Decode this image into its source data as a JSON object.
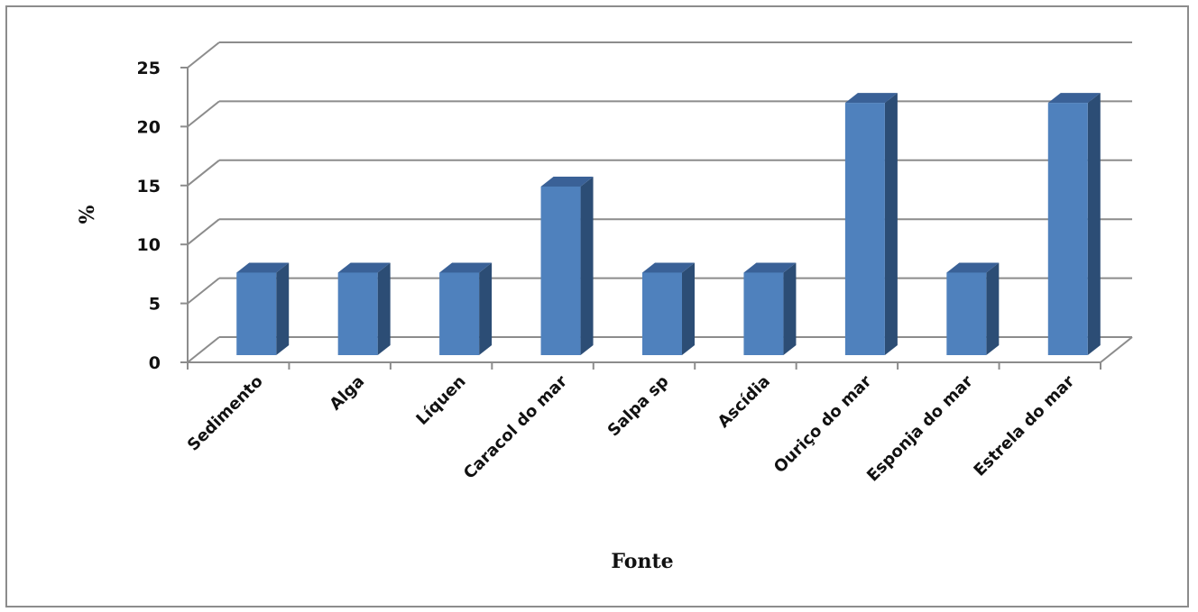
{
  "chart_data": {
    "type": "bar",
    "style": "3d-column",
    "title": "",
    "xlabel": "Fonte",
    "ylabel": "%",
    "categories": [
      "Sedimento",
      "Alga",
      "Líquen",
      "Caracol do mar",
      "Salpa sp",
      "Ascídia",
      "Ouriço do mar",
      "Esponja do mar",
      "Estrela do mar"
    ],
    "series": [
      {
        "values": [
          7,
          7,
          7,
          14.3,
          7,
          7,
          21.4,
          7,
          21.4
        ]
      }
    ],
    "ylim": [
      0,
      25
    ],
    "yticks": [
      0,
      5,
      10,
      15,
      20,
      25
    ],
    "grid": true,
    "legend": "none",
    "colors": {
      "bar_front": "#4f81bd",
      "bar_side": "#2c4d75",
      "bar_top": "#3a6197",
      "gridline": "#8c8c8c",
      "axis": "#8c8c8c"
    }
  }
}
